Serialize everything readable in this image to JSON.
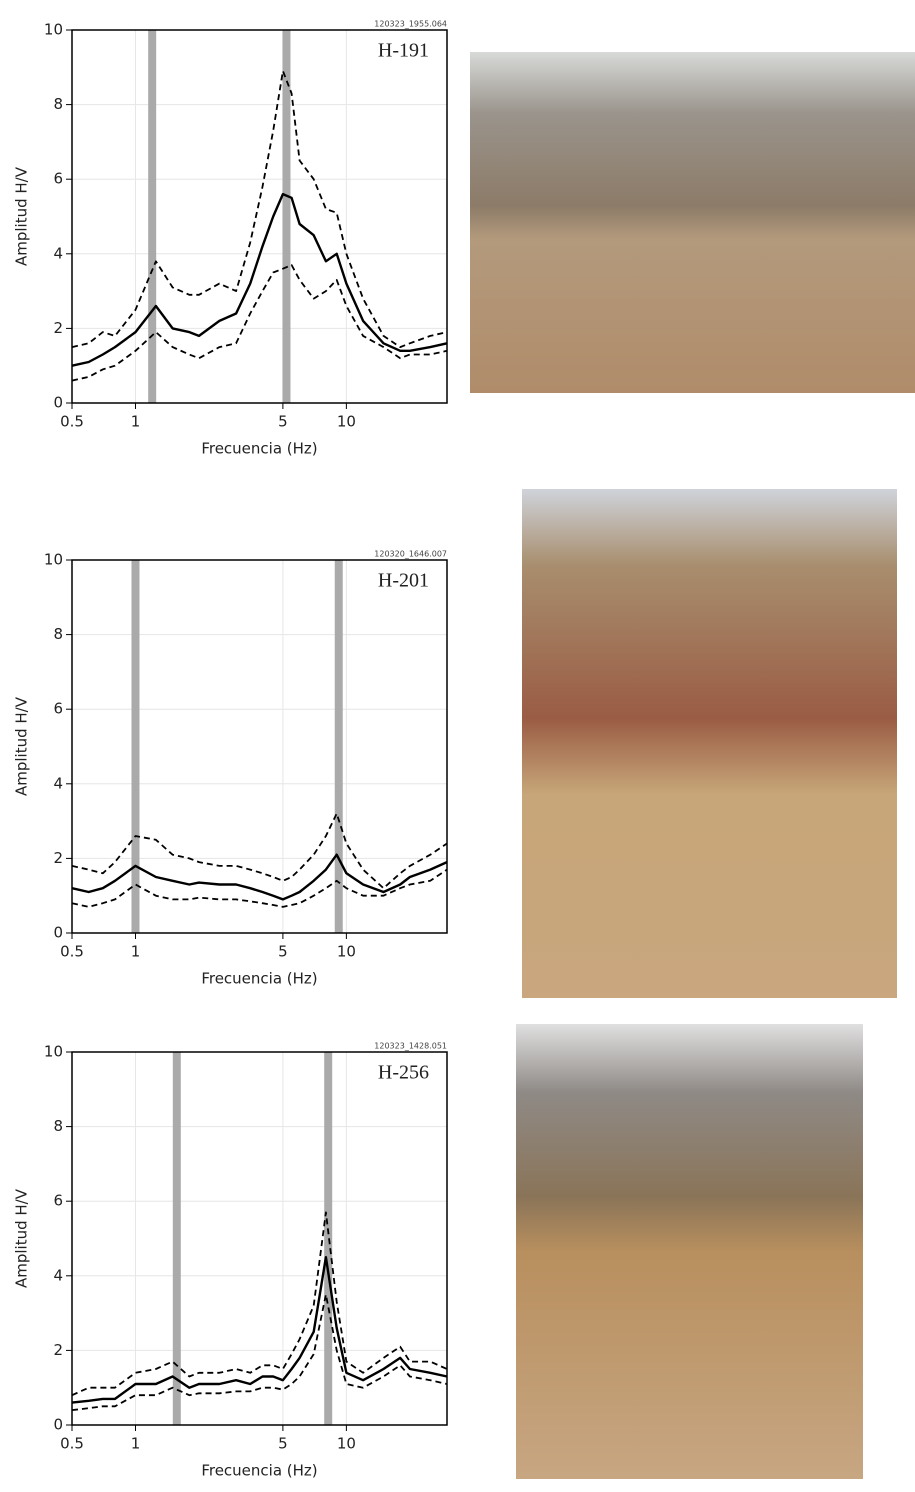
{
  "chart_data": [
    {
      "type": "line",
      "title": "H-191",
      "annotation": "120323_1955.064",
      "x_label": "Frecuencia (Hz)",
      "y_label": "Amplitud H/V",
      "xscale": "log",
      "xlim": [
        0.5,
        30
      ],
      "xticks": [
        0.5,
        1,
        5,
        10
      ],
      "ylim": [
        0,
        10
      ],
      "yticks": [
        0,
        2,
        4,
        6,
        8,
        10
      ],
      "grid": true,
      "bands": [
        1.2,
        5.2
      ],
      "band_color": "#aaaaaa",
      "x": [
        0.5,
        0.6,
        0.7,
        0.8,
        1,
        1.25,
        1.5,
        1.8,
        2,
        2.5,
        3,
        3.5,
        4,
        4.5,
        5,
        5.5,
        6,
        7,
        8,
        9,
        10,
        12,
        15,
        18,
        20,
        25,
        30
      ],
      "series": [
        {
          "color": "#000000",
          "dash": false,
          "values": [
            1.0,
            1.1,
            1.3,
            1.5,
            1.9,
            2.6,
            2.0,
            1.9,
            1.8,
            2.2,
            2.4,
            3.2,
            4.2,
            5.0,
            5.6,
            5.5,
            4.8,
            4.5,
            3.8,
            4.0,
            3.2,
            2.2,
            1.6,
            1.4,
            1.4,
            1.5,
            1.6
          ]
        },
        {
          "color": "#000000",
          "dash": true,
          "values": [
            1.5,
            1.6,
            1.9,
            1.8,
            2.5,
            3.8,
            3.1,
            2.9,
            2.9,
            3.2,
            3.0,
            4.3,
            5.8,
            7.3,
            8.9,
            8.3,
            6.5,
            6.0,
            5.2,
            5.1,
            4.0,
            2.8,
            1.8,
            1.5,
            1.6,
            1.8,
            1.9
          ]
        },
        {
          "color": "#000000",
          "dash": true,
          "values": [
            0.6,
            0.7,
            0.9,
            1.0,
            1.4,
            1.9,
            1.5,
            1.3,
            1.2,
            1.5,
            1.6,
            2.4,
            3.0,
            3.5,
            3.6,
            3.7,
            3.3,
            2.8,
            3.0,
            3.3,
            2.6,
            1.8,
            1.5,
            1.2,
            1.3,
            1.3,
            1.4
          ]
        }
      ]
    },
    {
      "type": "line",
      "title": "H-201",
      "annotation": "120320_1646.007",
      "x_label": "Frecuencia (Hz)",
      "y_label": "Amplitud H/V",
      "xscale": "log",
      "xlim": [
        0.5,
        30
      ],
      "xticks": [
        0.5,
        1,
        5,
        10
      ],
      "ylim": [
        0,
        10
      ],
      "yticks": [
        0,
        2,
        4,
        6,
        8,
        10
      ],
      "grid": true,
      "bands": [
        1.0,
        9.2
      ],
      "band_color": "#aaaaaa",
      "x": [
        0.5,
        0.6,
        0.7,
        0.8,
        1,
        1.25,
        1.5,
        1.8,
        2,
        2.5,
        3,
        3.5,
        4,
        4.5,
        5,
        5.5,
        6,
        7,
        8,
        9,
        10,
        12,
        15,
        18,
        20,
        25,
        30
      ],
      "series": [
        {
          "color": "#000000",
          "dash": false,
          "values": [
            1.2,
            1.1,
            1.2,
            1.4,
            1.8,
            1.5,
            1.4,
            1.3,
            1.35,
            1.3,
            1.3,
            1.2,
            1.1,
            1.0,
            0.9,
            1.0,
            1.1,
            1.4,
            1.7,
            2.1,
            1.6,
            1.3,
            1.1,
            1.3,
            1.5,
            1.7,
            1.9
          ]
        },
        {
          "color": "#000000",
          "dash": true,
          "values": [
            1.8,
            1.7,
            1.6,
            1.9,
            2.6,
            2.5,
            2.1,
            2.0,
            1.9,
            1.8,
            1.8,
            1.7,
            1.6,
            1.5,
            1.4,
            1.5,
            1.7,
            2.1,
            2.6,
            3.2,
            2.4,
            1.7,
            1.2,
            1.6,
            1.8,
            2.1,
            2.4
          ]
        },
        {
          "color": "#000000",
          "dash": true,
          "values": [
            0.8,
            0.7,
            0.8,
            0.9,
            1.3,
            1.0,
            0.9,
            0.9,
            0.95,
            0.9,
            0.9,
            0.85,
            0.8,
            0.75,
            0.7,
            0.75,
            0.8,
            1.0,
            1.2,
            1.4,
            1.2,
            1.0,
            1.0,
            1.2,
            1.3,
            1.4,
            1.7
          ]
        }
      ]
    },
    {
      "type": "line",
      "title": "H-256",
      "annotation": "120323_1428.051",
      "x_label": "Frecuencia (Hz)",
      "y_label": "Amplitud H/V",
      "xscale": "log",
      "xlim": [
        0.5,
        30
      ],
      "xticks": [
        0.5,
        1,
        5,
        10
      ],
      "ylim": [
        0,
        10
      ],
      "yticks": [
        0,
        2,
        4,
        6,
        8,
        10
      ],
      "grid": true,
      "bands": [
        1.57,
        8.2
      ],
      "band_color": "#aaaaaa",
      "x": [
        0.5,
        0.6,
        0.7,
        0.8,
        1,
        1.25,
        1.5,
        1.8,
        2,
        2.5,
        3,
        3.5,
        4,
        4.5,
        5,
        5.5,
        6,
        7,
        8,
        9,
        10,
        12,
        15,
        18,
        20,
        25,
        30
      ],
      "series": [
        {
          "color": "#000000",
          "dash": false,
          "values": [
            0.6,
            0.65,
            0.7,
            0.7,
            1.1,
            1.1,
            1.3,
            1.0,
            1.1,
            1.1,
            1.2,
            1.1,
            1.3,
            1.3,
            1.2,
            1.5,
            1.8,
            2.5,
            4.5,
            2.6,
            1.4,
            1.2,
            1.5,
            1.8,
            1.5,
            1.4,
            1.3
          ]
        },
        {
          "color": "#000000",
          "dash": true,
          "values": [
            0.8,
            1.0,
            1.0,
            1.0,
            1.4,
            1.5,
            1.7,
            1.3,
            1.4,
            1.4,
            1.5,
            1.4,
            1.6,
            1.6,
            1.5,
            1.9,
            2.3,
            3.2,
            5.7,
            3.3,
            1.7,
            1.4,
            1.8,
            2.1,
            1.7,
            1.7,
            1.5
          ]
        },
        {
          "color": "#000000",
          "dash": true,
          "values": [
            0.4,
            0.45,
            0.5,
            0.5,
            0.8,
            0.8,
            1.0,
            0.8,
            0.85,
            0.85,
            0.9,
            0.9,
            1.0,
            1.0,
            0.95,
            1.1,
            1.3,
            1.9,
            3.5,
            2.0,
            1.1,
            1.0,
            1.3,
            1.6,
            1.3,
            1.2,
            1.1
          ]
        }
      ]
    }
  ]
}
